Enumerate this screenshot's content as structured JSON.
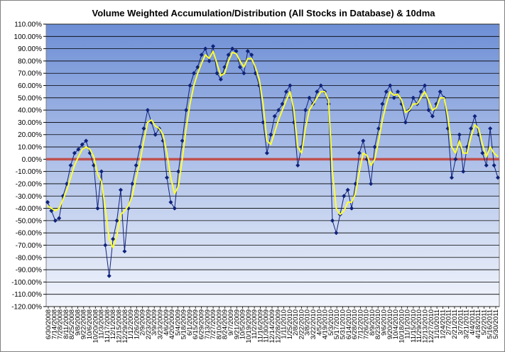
{
  "chart_data": {
    "type": "line",
    "title": "Volume Weighted Accumulation/Distribution  (All Stocks in Database) & 10dma",
    "xlabel": "",
    "ylabel": "",
    "ylim": [
      -120,
      110
    ],
    "y_tick_step": 10,
    "y_tick_format": "percent_2dp",
    "grid": true,
    "legend": "none",
    "colors": {
      "plot_top": "#6E8FD6",
      "plot_bottom": "#F2F5FC",
      "series_raw": "#10237A",
      "series_ma": "#FFFF33",
      "zero_line": "#C0504D",
      "gridline": "#000000"
    },
    "x_tick_labels": [
      "6/30/2008",
      "7/14/2008",
      "7/28/2008",
      "8/11/2008",
      "8/25/2008",
      "9/8/2008",
      "9/22/2008",
      "10/6/2008",
      "10/20/2008",
      "11/3/2008",
      "11/17/2008",
      "12/1/2008",
      "12/15/2008",
      "12/29/2008",
      "1/12/2009",
      "1/26/2009",
      "2/9/2009",
      "2/23/2009",
      "3/9/2009",
      "3/23/2009",
      "4/6/2009",
      "4/20/2009",
      "5/4/2009",
      "5/18/2009",
      "6/1/2009",
      "6/15/2009",
      "6/29/2009",
      "7/13/2009",
      "7/27/2009",
      "8/10/2009",
      "8/24/2009",
      "9/7/2009",
      "9/21/2009",
      "10/5/2009",
      "10/19/2009",
      "11/2/2009",
      "11/16/2009",
      "11/30/2009",
      "12/14/2009",
      "12/28/2009",
      "1/11/2010",
      "1/25/2010",
      "2/8/2010",
      "2/22/2010",
      "3/8/2010",
      "3/22/2010",
      "4/5/2010",
      "4/19/2010",
      "5/3/2010",
      "5/17/2010",
      "5/31/2010",
      "6/14/2010",
      "6/28/2010",
      "7/12/2010",
      "7/26/2010",
      "8/9/2010",
      "8/23/2010",
      "9/6/2010",
      "9/20/2010",
      "10/4/2010",
      "10/18/2010",
      "11/1/2010",
      "11/15/2010",
      "11/29/2010",
      "12/13/2010",
      "12/27/2010",
      "1/10/2011",
      "1/24/2011",
      "2/7/2011",
      "2/21/2011",
      "3/7/2011",
      "3/21/2011",
      "4/4/2011",
      "4/18/2011",
      "5/2/2011",
      "5/16/2011",
      "5/30/2011"
    ],
    "series": [
      {
        "style": "raw-diamond-markers",
        "values": [
          -35,
          -42,
          -50,
          -48,
          -30,
          -20,
          -5,
          5,
          8,
          12,
          15,
          5,
          -5,
          -40,
          -10,
          -70,
          -95,
          -65,
          -50,
          -25,
          -75,
          -40,
          -20,
          -5,
          10,
          25,
          40,
          30,
          20,
          25,
          15,
          -15,
          -35,
          -40,
          -10,
          15,
          40,
          60,
          70,
          75,
          85,
          90,
          80,
          92,
          70,
          65,
          75,
          85,
          90,
          88,
          75,
          70,
          88,
          85,
          70,
          60,
          30,
          5,
          20,
          35,
          40,
          45,
          55,
          60,
          30,
          -5,
          10,
          40,
          50,
          45,
          55,
          60,
          55,
          45,
          -50,
          -60,
          -45,
          -30,
          -25,
          -40,
          -20,
          5,
          15,
          0,
          -20,
          10,
          25,
          45,
          55,
          60,
          50,
          55,
          45,
          30,
          40,
          50,
          45,
          55,
          60,
          40,
          35,
          45,
          55,
          50,
          25,
          -15,
          0,
          20,
          -10,
          10,
          25,
          35,
          20,
          5,
          -5,
          25,
          -5,
          -15
        ]
      },
      {
        "style": "10dma",
        "values": [
          -38,
          -40,
          -42,
          -40,
          -33,
          -25,
          -15,
          -5,
          2,
          8,
          10,
          8,
          2,
          -12,
          -18,
          -40,
          -65,
          -72,
          -62,
          -45,
          -42,
          -38,
          -30,
          -15,
          -2,
          15,
          30,
          32,
          27,
          25,
          20,
          5,
          -15,
          -28,
          -22,
          0,
          25,
          45,
          60,
          70,
          78,
          85,
          82,
          88,
          78,
          68,
          70,
          80,
          87,
          86,
          80,
          75,
          82,
          82,
          75,
          65,
          45,
          15,
          12,
          22,
          32,
          40,
          48,
          55,
          40,
          10,
          5,
          25,
          40,
          45,
          50,
          55,
          55,
          48,
          -10,
          -40,
          -45,
          -42,
          -35,
          -35,
          -28,
          -10,
          5,
          3,
          -5,
          0,
          15,
          32,
          45,
          55,
          52,
          53,
          48,
          38,
          40,
          45,
          45,
          50,
          55,
          48,
          40,
          42,
          50,
          50,
          35,
          10,
          5,
          15,
          5,
          5,
          18,
          28,
          25,
          12,
          2,
          10,
          5,
          2
        ]
      }
    ]
  }
}
